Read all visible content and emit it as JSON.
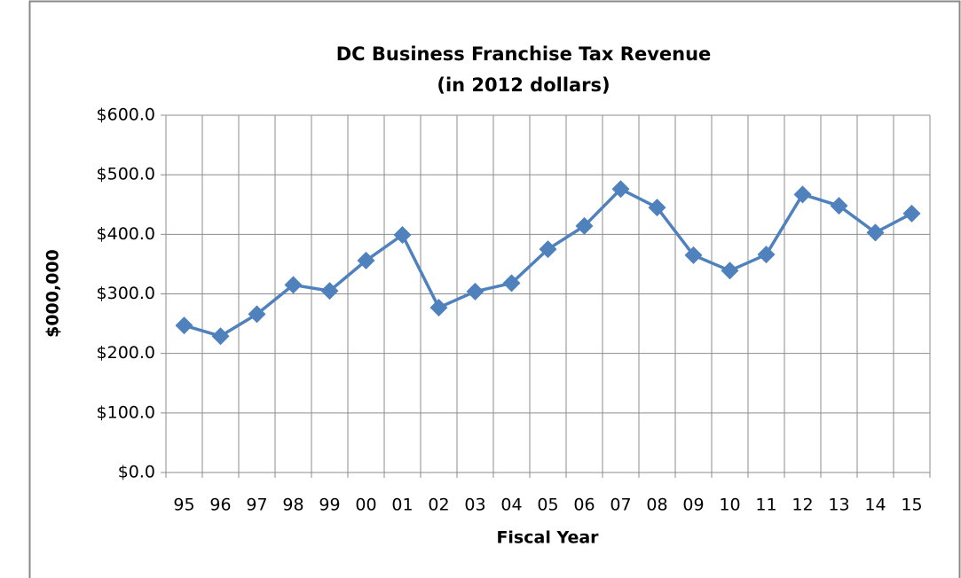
{
  "chart_data": {
    "type": "line",
    "title": "DC Business Franchise Tax Revenue",
    "subtitle": "(in 2012 dollars)",
    "y_label": "$000,000",
    "x_label": "Fiscal Year",
    "categories": [
      "95",
      "96",
      "97",
      "98",
      "99",
      "00",
      "01",
      "02",
      "03",
      "04",
      "05",
      "06",
      "07",
      "08",
      "09",
      "10",
      "11",
      "12",
      "13",
      "14",
      "15"
    ],
    "series": [
      {
        "name": "Revenue",
        "color": "#4f81bd",
        "values": [
          247,
          229,
          266,
          315,
          305,
          356,
          399,
          277,
          304,
          318,
          375,
          414,
          476,
          445,
          365,
          339,
          366,
          467,
          448,
          403,
          435
        ]
      }
    ],
    "ylim": [
      0,
      600
    ],
    "yticks": [
      {
        "value": 0,
        "label": "$0.0"
      },
      {
        "value": 100,
        "label": "$100.0"
      },
      {
        "value": 200,
        "label": "$200.0"
      },
      {
        "value": 300,
        "label": "$300.0"
      },
      {
        "value": 400,
        "label": "$400.0"
      },
      {
        "value": 500,
        "label": "$500.0"
      },
      {
        "value": 600,
        "label": "$600.0"
      }
    ],
    "grid": true,
    "legend": false
  }
}
